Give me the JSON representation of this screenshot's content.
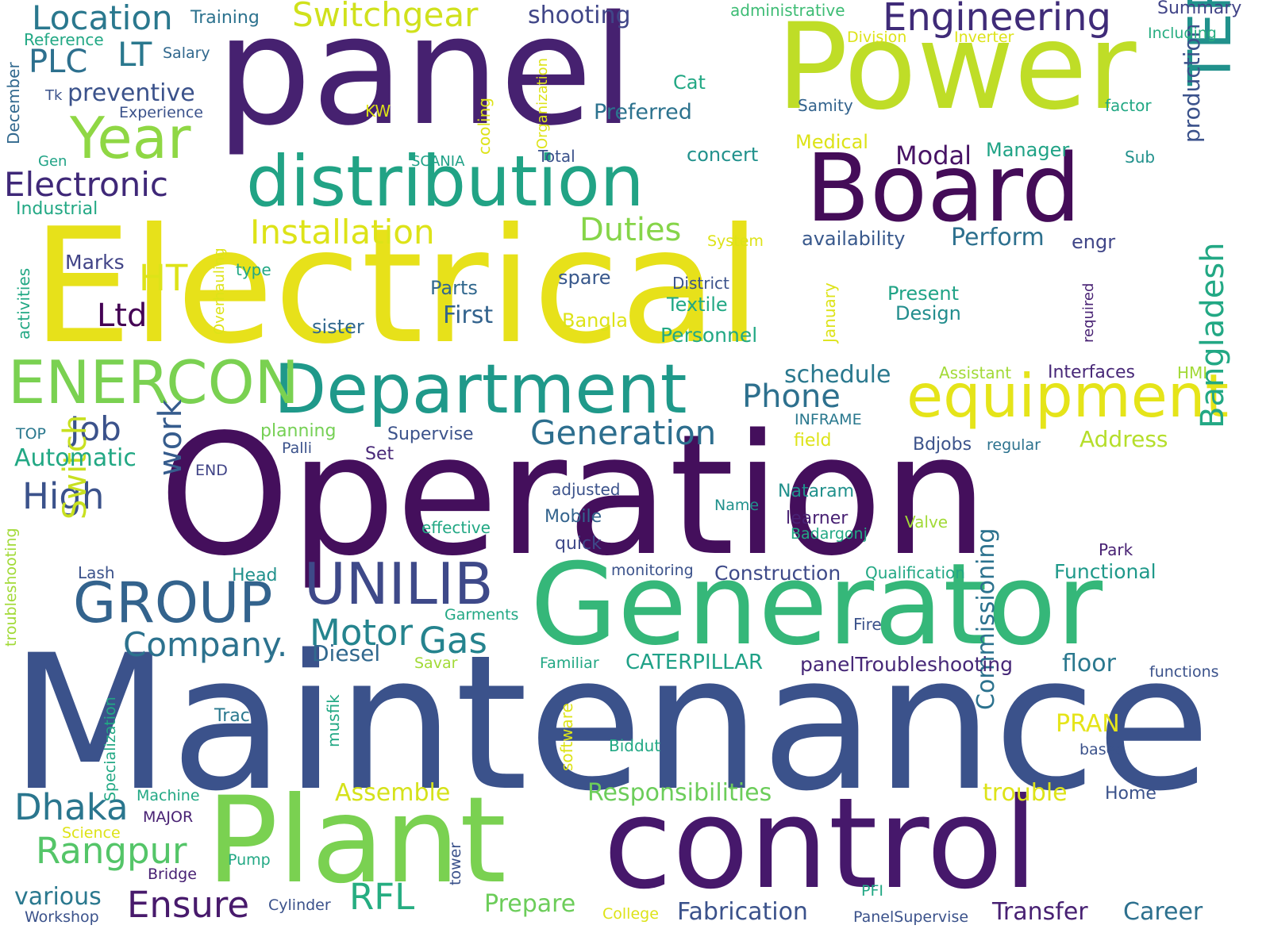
{
  "words": [
    {
      "text": "Maintenance",
      "color": "#3b528b"
    },
    {
      "text": "Operation",
      "color": "#440f5c"
    },
    {
      "text": "Electrical",
      "color": "#e7e11a"
    },
    {
      "text": "panel",
      "color": "#462170"
    },
    {
      "text": "Power",
      "color": "#bfdd27"
    },
    {
      "text": "control",
      "color": "#46186b"
    },
    {
      "text": "Plant",
      "color": "#7ad151"
    },
    {
      "text": "Generator",
      "color": "#35b779"
    },
    {
      "text": "Board",
      "color": "#440c58"
    },
    {
      "text": "distribution",
      "color": "#21a385"
    },
    {
      "text": "Department",
      "color": "#1f998a"
    },
    {
      "text": "equipment",
      "color": "#e5e419"
    },
    {
      "text": "ENERCON",
      "color": "#7ad151"
    },
    {
      "text": "UNILIB",
      "color": "#3e4989"
    },
    {
      "text": "GROUP",
      "color": "#33638d"
    },
    {
      "text": "Year",
      "color": "#8fd744"
    },
    {
      "text": "TERBERG",
      "color": "#21918c"
    },
    {
      "text": "Engineering",
      "color": "#3f2b78"
    },
    {
      "text": "Location",
      "color": "#2a788e"
    },
    {
      "text": "Switchgear",
      "color": "#d0e11c"
    },
    {
      "text": "Installation",
      "color": "#dde318"
    },
    {
      "text": "Electronic",
      "color": "#3f2878"
    },
    {
      "text": "Generation",
      "color": "#2d6e8e"
    },
    {
      "text": "Company.",
      "color": "#2c728e"
    },
    {
      "text": "Bangladesh",
      "color": "#22a884"
    },
    {
      "text": "Dhaka",
      "color": "#2a768e"
    },
    {
      "text": "Rangpur",
      "color": "#54c568"
    },
    {
      "text": "Ensure",
      "color": "#481a6c"
    },
    {
      "text": "RFL",
      "color": "#26ad81"
    },
    {
      "text": "Motor",
      "color": "#25848e"
    },
    {
      "text": "Gas",
      "color": "#25838e"
    },
    {
      "text": "High",
      "color": "#3b528b"
    },
    {
      "text": "Job",
      "color": "#3b528b"
    },
    {
      "text": "Switch",
      "color": "#c8e020"
    },
    {
      "text": "work",
      "color": "#365c8d"
    },
    {
      "text": "Phone",
      "color": "#2d708e"
    },
    {
      "text": "Duties",
      "color": "#86d549"
    },
    {
      "text": "HT",
      "color": "#dde318"
    },
    {
      "text": "Ltd",
      "color": "#440154"
    },
    {
      "text": "PLC",
      "color": "#2d708e"
    },
    {
      "text": "LT",
      "color": "#2a788e"
    },
    {
      "text": "Commissioning",
      "color": "#2c728e"
    },
    {
      "text": "Fabrication",
      "color": "#3b528b"
    },
    {
      "text": "Responsibilities",
      "color": "#6ccd5a"
    },
    {
      "text": "Assemble",
      "color": "#d5e21a"
    },
    {
      "text": "Prepare",
      "color": "#6ccd5a"
    },
    {
      "text": "trouble",
      "color": "#dde318"
    },
    {
      "text": "Transfer",
      "color": "#482173"
    },
    {
      "text": "Career",
      "color": "#2d708e"
    },
    {
      "text": "production",
      "color": "#3b528b"
    },
    {
      "text": "floor",
      "color": "#2a788e"
    },
    {
      "text": "PRAN",
      "color": "#e5e419"
    },
    {
      "text": "CATERPILLAR",
      "color": "#1fa187"
    },
    {
      "text": "Diesel",
      "color": "#31688e"
    },
    {
      "text": "Construction",
      "color": "#3e4a89"
    },
    {
      "text": "panelTroubleshooting",
      "color": "#462777"
    },
    {
      "text": "Functional",
      "color": "#1f998a"
    },
    {
      "text": "Automatic",
      "color": "#22a884"
    },
    {
      "text": "various",
      "color": "#2a788e"
    },
    {
      "text": "Address",
      "color": "#b5de2b"
    },
    {
      "text": "schedule",
      "color": "#2a788e"
    },
    {
      "text": "Supervise",
      "color": "#3b528b"
    },
    {
      "text": "Modal",
      "color": "#471365"
    },
    {
      "text": "Perform",
      "color": "#2d708e"
    },
    {
      "text": "First",
      "color": "#33638d"
    },
    {
      "text": "preventive",
      "color": "#3b528b"
    },
    {
      "text": "shooting",
      "color": "#404688"
    },
    {
      "text": "Summary",
      "color": "#414487"
    },
    {
      "text": "Preferred",
      "color": "#2c728e"
    },
    {
      "text": "Marks",
      "color": "#414487"
    },
    {
      "text": "Present",
      "color": "#20a386"
    },
    {
      "text": "Design",
      "color": "#228d8d"
    },
    {
      "text": "Textile",
      "color": "#22a884"
    },
    {
      "text": "Personnel",
      "color": "#22a884"
    },
    {
      "text": "Parts",
      "color": "#31688e"
    },
    {
      "text": "Bangla",
      "color": "#dde318"
    },
    {
      "text": "sister",
      "color": "#31688e"
    },
    {
      "text": "spare",
      "color": "#38588c"
    },
    {
      "text": "availability",
      "color": "#38588c"
    },
    {
      "text": "engr",
      "color": "#404688"
    },
    {
      "text": "Cat",
      "color": "#22a884"
    },
    {
      "text": "concert",
      "color": "#21918c"
    },
    {
      "text": "Medical",
      "color": "#dde318"
    },
    {
      "text": "Manager",
      "color": "#20a386"
    },
    {
      "text": "Training",
      "color": "#2c728e"
    },
    {
      "text": "Reference",
      "color": "#22a884"
    },
    {
      "text": "Salary",
      "color": "#31688e"
    },
    {
      "text": "Experience",
      "color": "#3b528b"
    },
    {
      "text": "Tk",
      "color": "#3b528b"
    },
    {
      "text": "Gen",
      "color": "#20a386"
    },
    {
      "text": "Industrial",
      "color": "#22a884"
    },
    {
      "text": "December",
      "color": "#31688e"
    },
    {
      "text": "administrative",
      "color": "#3dbc74"
    },
    {
      "text": "Division",
      "color": "#dde318"
    },
    {
      "text": "Inverter",
      "color": "#dde318"
    },
    {
      "text": "Including",
      "color": "#27ad81"
    },
    {
      "text": "Samity",
      "color": "#33638d"
    },
    {
      "text": "factor",
      "color": "#22a884"
    },
    {
      "text": "Sub",
      "color": "#21918c"
    },
    {
      "text": "KW",
      "color": "#dde318"
    },
    {
      "text": "Total",
      "color": "#3b528b"
    },
    {
      "text": "SCANIA",
      "color": "#1fa187"
    },
    {
      "text": "System",
      "color": "#dde318"
    },
    {
      "text": "cooling",
      "color": "#dde318"
    },
    {
      "text": "Organization",
      "color": "#dde318"
    },
    {
      "text": "Overhauling",
      "color": "#dde318"
    },
    {
      "text": "activities",
      "color": "#22a884"
    },
    {
      "text": "type",
      "color": "#22a884"
    },
    {
      "text": "District",
      "color": "#3b528b"
    },
    {
      "text": "January",
      "color": "#dde318"
    },
    {
      "text": "required",
      "color": "#482173"
    },
    {
      "text": "Assistant",
      "color": "#a2da37"
    },
    {
      "text": "Interfaces",
      "color": "#482878"
    },
    {
      "text": "HMI",
      "color": "#a2da37"
    },
    {
      "text": "INFRAME",
      "color": "#2a788e"
    },
    {
      "text": "planning",
      "color": "#75d054"
    },
    {
      "text": "TOP",
      "color": "#2a788e"
    },
    {
      "text": "field",
      "color": "#dde318"
    },
    {
      "text": "Bdjobs",
      "color": "#3b528b"
    },
    {
      "text": "regular",
      "color": "#2c728e"
    },
    {
      "text": "Palli",
      "color": "#3b528b"
    },
    {
      "text": "Set",
      "color": "#482878"
    },
    {
      "text": "END",
      "color": "#414487"
    },
    {
      "text": "adjusted",
      "color": "#3b528b"
    },
    {
      "text": "Nataram",
      "color": "#21918c"
    },
    {
      "text": "Name",
      "color": "#21918c"
    },
    {
      "text": "Mobile",
      "color": "#33638d"
    },
    {
      "text": "learner",
      "color": "#482173"
    },
    {
      "text": "effective",
      "color": "#22a884"
    },
    {
      "text": "Valve",
      "color": "#a2da37"
    },
    {
      "text": "Badargonj",
      "color": "#22a884"
    },
    {
      "text": "quick",
      "color": "#3e4989"
    },
    {
      "text": "Park",
      "color": "#482173"
    },
    {
      "text": "troubleshooting",
      "color": "#a2da37"
    },
    {
      "text": "Lash",
      "color": "#3b528b"
    },
    {
      "text": "Head",
      "color": "#21918c"
    },
    {
      "text": "monitoring",
      "color": "#3b528b"
    },
    {
      "text": "Qualification",
      "color": "#22a884"
    },
    {
      "text": "Garments",
      "color": "#22a884"
    },
    {
      "text": "Fire",
      "color": "#3b528b"
    },
    {
      "text": "Familiar",
      "color": "#22a884"
    },
    {
      "text": "Savar",
      "color": "#a2da37"
    },
    {
      "text": "functions",
      "color": "#3b528b"
    },
    {
      "text": "musfik",
      "color": "#22a884"
    },
    {
      "text": "Trac",
      "color": "#2a788e"
    },
    {
      "text": "software",
      "color": "#dde318"
    },
    {
      "text": "Biddut",
      "color": "#22a884"
    },
    {
      "text": "based",
      "color": "#3b528b"
    },
    {
      "text": "Specialization",
      "color": "#22a884"
    },
    {
      "text": "Machine",
      "color": "#22a884"
    },
    {
      "text": "MAJOR",
      "color": "#482173"
    },
    {
      "text": "Science",
      "color": "#dde318"
    },
    {
      "text": "Pump",
      "color": "#22a884"
    },
    {
      "text": "Bridge",
      "color": "#482173"
    },
    {
      "text": "tower",
      "color": "#3b528b"
    },
    {
      "text": "Home",
      "color": "#3b528b"
    },
    {
      "text": "Cylinder",
      "color": "#3b528b"
    },
    {
      "text": "PFI",
      "color": "#22a884"
    },
    {
      "text": "College",
      "color": "#dde318"
    },
    {
      "text": "Workshop",
      "color": "#3b528b"
    },
    {
      "text": "PanelSupervise",
      "color": "#3b528b"
    }
  ]
}
